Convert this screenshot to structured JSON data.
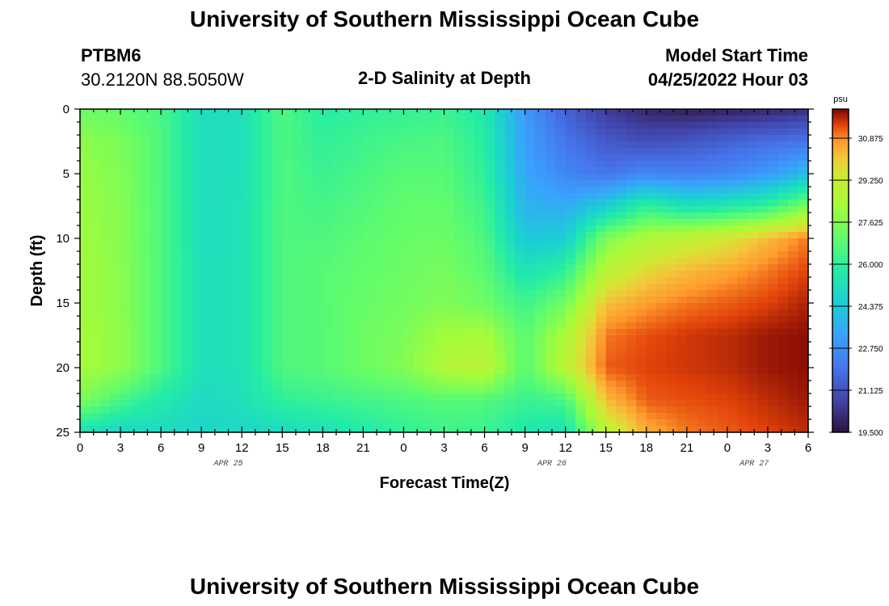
{
  "header": {
    "title": "University of Southern Mississippi Ocean Cube",
    "station": "PTBM6",
    "coords": "30.2120N  88.5050W",
    "subtitle": "2-D Salinity at Depth",
    "start_label": "Model Start Time",
    "start_value": "04/25/2022 Hour 03"
  },
  "footer": {
    "title": "University of Southern Mississippi Ocean Cube"
  },
  "colorbar": {
    "unit": "psu",
    "ticks": [
      "30.875",
      "29.250",
      "27.625",
      "26.000",
      "24.375",
      "22.750",
      "21.125",
      "19.500"
    ],
    "min": 19.5,
    "max": 32.0
  },
  "chart_data": {
    "type": "heatmap",
    "title": "2-D Salinity at Depth",
    "xlabel": "Forecast Time(Z)",
    "ylabel": "Depth (ft)",
    "x_hours": [
      0,
      54
    ],
    "xtick_labels": [
      "0",
      "3",
      "6",
      "9",
      "12",
      "15",
      "18",
      "21",
      "0",
      "3",
      "6",
      "9",
      "12",
      "15",
      "18",
      "21",
      "0",
      "3",
      "6"
    ],
    "date_labels": [
      {
        "label": "APR 25",
        "hour": 11
      },
      {
        "label": "APR 26",
        "hour": 35
      },
      {
        "label": "APR 27",
        "hour": 50
      }
    ],
    "ylim": [
      0,
      25
    ],
    "ytick_labels": [
      "0",
      "5",
      "10",
      "15",
      "20",
      "25"
    ],
    "depth_ft": [
      0,
      2.5,
      5,
      7.5,
      10,
      12.5,
      15,
      17.5,
      20,
      22.5,
      25
    ],
    "time_hours": [
      0,
      3,
      6,
      9,
      12,
      15,
      18,
      21,
      24,
      27,
      30,
      33,
      36,
      39,
      42,
      45,
      48,
      51,
      54
    ],
    "salinity_psu": [
      [
        27.2,
        27.0,
        26.5,
        25.1,
        25.2,
        26.6,
        25.8,
        26.0,
        26.1,
        26.2,
        25.6,
        23.0,
        21.5,
        20.5,
        20.0,
        19.8,
        19.9,
        20.0,
        20.2
      ],
      [
        27.8,
        27.5,
        26.6,
        25.1,
        25.2,
        26.6,
        26.0,
        26.3,
        26.5,
        26.6,
        25.8,
        23.2,
        22.0,
        21.3,
        21.0,
        21.2,
        21.5,
        21.8,
        22.0
      ],
      [
        28.0,
        27.6,
        26.6,
        25.1,
        25.2,
        26.6,
        26.2,
        26.5,
        26.8,
        26.8,
        26.0,
        23.4,
        22.5,
        22.0,
        22.5,
        22.3,
        22.5,
        23.0,
        24.0
      ],
      [
        28.1,
        27.7,
        26.6,
        25.1,
        25.3,
        26.6,
        26.4,
        26.7,
        27.0,
        27.0,
        26.3,
        23.7,
        23.5,
        24.5,
        26.0,
        25.2,
        25.5,
        26.0,
        27.5
      ],
      [
        28.2,
        27.7,
        26.6,
        25.1,
        25.3,
        26.6,
        26.6,
        26.9,
        27.1,
        27.2,
        26.6,
        24.3,
        24.5,
        27.5,
        28.5,
        29.0,
        29.5,
        30.3,
        31.0
      ],
      [
        28.2,
        27.8,
        26.6,
        25.2,
        25.3,
        26.6,
        26.8,
        27.0,
        27.2,
        27.4,
        26.9,
        25.3,
        26.0,
        28.8,
        29.8,
        30.3,
        30.6,
        31.0,
        31.4
      ],
      [
        28.2,
        27.8,
        26.6,
        25.2,
        25.3,
        26.6,
        26.8,
        27.1,
        27.3,
        27.6,
        27.2,
        26.3,
        27.3,
        30.2,
        30.7,
        31.0,
        31.2,
        31.4,
        31.7
      ],
      [
        28.3,
        27.9,
        26.6,
        25.2,
        25.3,
        26.6,
        26.8,
        27.2,
        27.5,
        28.2,
        28.4,
        26.8,
        28.5,
        31.0,
        31.3,
        31.5,
        31.6,
        31.8,
        31.9
      ],
      [
        28.3,
        27.9,
        26.6,
        25.2,
        25.3,
        26.6,
        26.8,
        27.2,
        27.6,
        28.6,
        29.0,
        26.8,
        28.9,
        31.2,
        31.4,
        31.5,
        31.6,
        31.8,
        31.9
      ],
      [
        27.6,
        26.5,
        25.6,
        25.0,
        25.2,
        26.0,
        26.2,
        26.4,
        26.6,
        26.8,
        26.7,
        26.2,
        26.5,
        30.3,
        31.2,
        31.3,
        31.4,
        31.6,
        31.8
      ],
      [
        25.2,
        24.8,
        25.0,
        24.8,
        24.9,
        25.0,
        25.3,
        25.6,
        26.0,
        26.3,
        26.2,
        25.5,
        25.2,
        28.8,
        30.5,
        31.0,
        31.2,
        31.4,
        31.6
      ]
    ]
  }
}
